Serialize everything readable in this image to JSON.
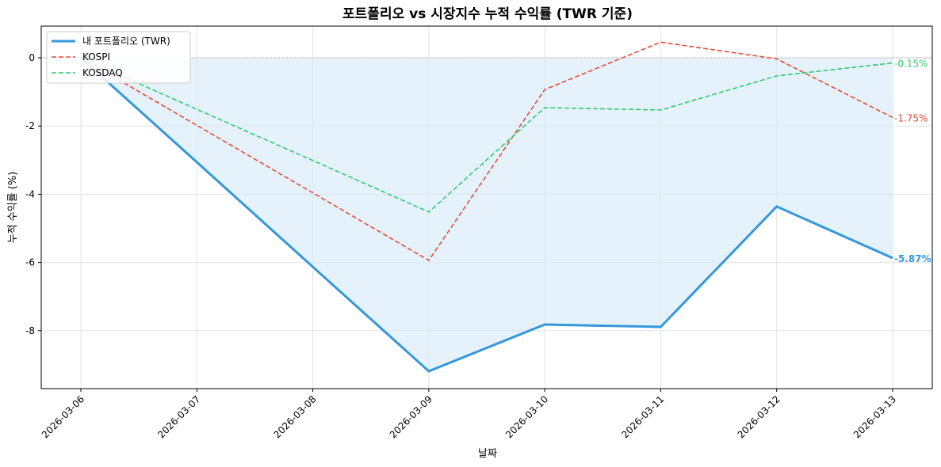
{
  "chart_data": {
    "type": "line",
    "title": "포트폴리오 vs 시장지수 누적 수익률 (TWR 기준)",
    "xlabel": "날짜",
    "ylabel": "누적 수익률 (%)",
    "x": [
      "2026-03-06",
      "2026-03-07",
      "2026-03-08",
      "2026-03-09",
      "2026-03-10",
      "2026-03-11",
      "2026-03-12",
      "2026-03-13"
    ],
    "ylim": [
      -9.7,
      0.93
    ],
    "yticks": [
      0,
      -2,
      -4,
      -6,
      -8
    ],
    "grid": true,
    "legend_position": "top-left",
    "series": [
      {
        "name": "내 포트폴리오 (TWR)",
        "color": "#3498db",
        "style": "solid",
        "fill": "#d6eaf8",
        "values": [
          0,
          -3.06,
          -6.13,
          -9.19,
          -7.82,
          -7.89,
          -4.36,
          -5.87
        ],
        "end_label": "-5.87%"
      },
      {
        "name": "KOSPI",
        "color": "#e74c3c",
        "style": "dashed",
        "values": [
          0,
          -1.98,
          -3.96,
          -5.94,
          -0.93,
          0.46,
          -0.03,
          -1.75
        ],
        "end_label": "-1.75%"
      },
      {
        "name": "KOSDAQ",
        "color": "#2ecc71",
        "style": "dashed",
        "values": [
          0,
          -1.51,
          -3.01,
          -4.52,
          -1.46,
          -1.53,
          -0.53,
          -0.15
        ],
        "end_label": "-0.15%"
      }
    ]
  }
}
